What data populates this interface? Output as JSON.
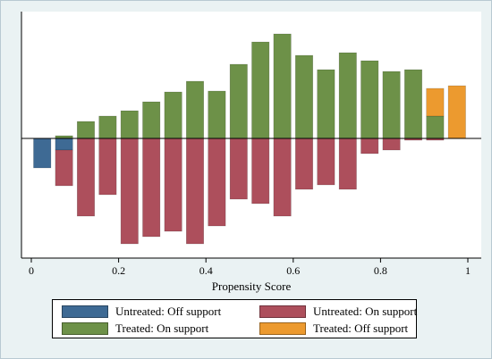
{
  "chart_data": {
    "type": "bar",
    "xlabel": "Propensity Score",
    "ylabel": "",
    "xlim": [
      0,
      1
    ],
    "x_ticks": [
      "0",
      "0.2",
      "0.4",
      "0.6",
      "0.8",
      "1"
    ],
    "grid": false,
    "legend_position": "bottom",
    "bin_width": 0.05,
    "bin_centers": [
      0.025,
      0.075,
      0.125,
      0.175,
      0.225,
      0.275,
      0.325,
      0.375,
      0.425,
      0.475,
      0.525,
      0.575,
      0.625,
      0.675,
      0.725,
      0.775,
      0.825,
      0.875,
      0.925,
      0.975
    ],
    "ylim": [
      -1.22,
      1.18
    ],
    "series": [
      {
        "name": "Untreated: Off support",
        "color": "#3e6a94",
        "direction": "down",
        "values": [
          0.33,
          0.13,
          0,
          0,
          0,
          0,
          0,
          0,
          0,
          0,
          0,
          0,
          0,
          0,
          0,
          0,
          0,
          0,
          0,
          0
        ]
      },
      {
        "name": "Untreated: On support",
        "color": "#ad4f5c",
        "direction": "down",
        "values": [
          0,
          0.4,
          0.87,
          0.63,
          1.18,
          1.1,
          1.04,
          1.18,
          0.98,
          0.68,
          0.73,
          0.87,
          0.57,
          0.52,
          0.57,
          0.17,
          0.13,
          0.02,
          0.02,
          0
        ]
      },
      {
        "name": "Treated: On support",
        "color": "#6d9148",
        "direction": "up",
        "values": [
          0,
          0.03,
          0.19,
          0.25,
          0.31,
          0.41,
          0.52,
          0.64,
          0.53,
          0.83,
          1.08,
          1.17,
          0.93,
          0.77,
          0.96,
          0.87,
          0.75,
          0.77,
          0.25,
          0
        ]
      },
      {
        "name": "Treated: Off support",
        "color": "#ec9a2f",
        "direction": "up",
        "values": [
          0,
          0,
          0,
          0,
          0,
          0,
          0,
          0,
          0,
          0,
          0,
          0,
          0,
          0,
          0,
          0,
          0,
          0,
          0.31,
          0.59
        ]
      }
    ],
    "colors": {
      "background": "#eaf2f3",
      "plot_area": "#ffffff"
    }
  },
  "legend": {
    "items": [
      {
        "label": "Untreated: Off support",
        "color": "#3e6a94"
      },
      {
        "label": "Untreated: On support",
        "color": "#ad4f5c"
      },
      {
        "label": "Treated: On support",
        "color": "#6d9148"
      },
      {
        "label": "Treated: Off support",
        "color": "#ec9a2f"
      }
    ]
  }
}
